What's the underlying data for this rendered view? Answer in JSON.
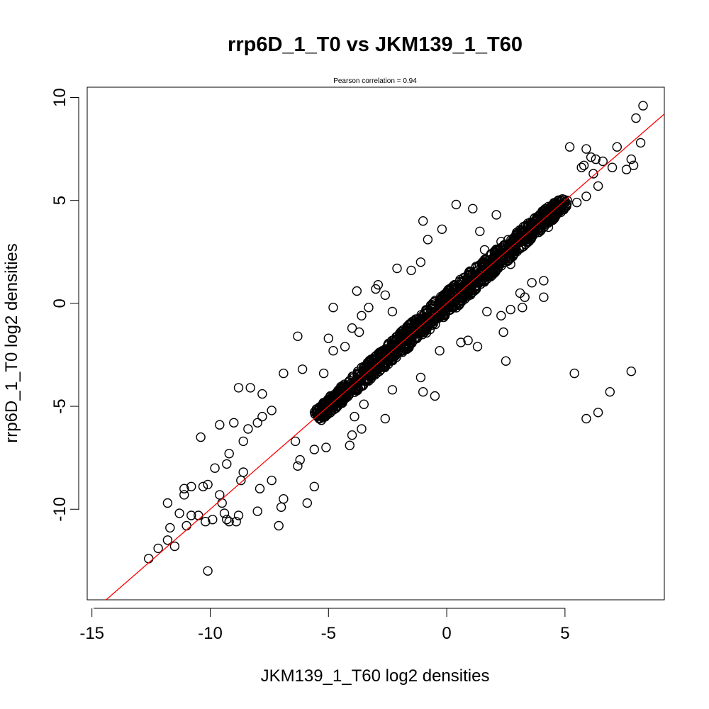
{
  "chart_data": {
    "type": "scatter",
    "title": "rrp6D_1_T0 vs JKM139_1_T60",
    "subtitle": "Pearson correlation =  0.94",
    "xlabel": "JKM139_1_T60 log2 densities",
    "ylabel": "rrp6D_1_T0 log2 densities",
    "xlim": [
      -15.2,
      9.2
    ],
    "ylim": [
      -14.4,
      10.5
    ],
    "xticks": [
      -15,
      -10,
      -5,
      0,
      5
    ],
    "yticks": [
      -10,
      -5,
      0,
      5,
      10
    ],
    "xtick_labels": [
      "-15",
      "-10",
      "-5",
      "0",
      "5"
    ],
    "ytick_labels": [
      "-10",
      "-5",
      "0",
      "5",
      "10"
    ],
    "fit_line": {
      "slope": 1.0,
      "intercept": 0.0,
      "color": "#ff0000"
    },
    "point_color": "#000000",
    "points": [
      [
        8.3,
        9.6
      ],
      [
        8.0,
        9.0
      ],
      [
        8.2,
        7.8
      ],
      [
        7.8,
        7.0
      ],
      [
        7.9,
        6.7
      ],
      [
        7.6,
        6.5
      ],
      [
        7.2,
        7.6
      ],
      [
        7.0,
        6.6
      ],
      [
        6.3,
        7.0
      ],
      [
        6.1,
        7.1
      ],
      [
        5.9,
        7.5
      ],
      [
        5.2,
        7.6
      ],
      [
        6.6,
        6.9
      ],
      [
        5.8,
        6.7
      ],
      [
        5.7,
        6.6
      ],
      [
        6.2,
        6.3
      ],
      [
        6.4,
        5.7
      ],
      [
        5.9,
        5.2
      ],
      [
        5.5,
        4.9
      ],
      [
        5.1,
        5.0
      ],
      [
        4.8,
        4.7
      ],
      [
        4.3,
        3.7
      ],
      [
        4.1,
        1.1
      ],
      [
        4.1,
        0.3
      ],
      [
        3.2,
        -0.2
      ],
      [
        2.4,
        -1.4
      ],
      [
        2.5,
        -2.8
      ],
      [
        5.4,
        -3.4
      ],
      [
        7.8,
        -3.3
      ],
      [
        6.9,
        -4.3
      ],
      [
        6.4,
        -5.3
      ],
      [
        5.9,
        -5.6
      ],
      [
        0.4,
        4.8
      ],
      [
        -1.1,
        2.0
      ],
      [
        -1.5,
        1.6
      ],
      [
        -0.8,
        3.1
      ],
      [
        -2.6,
        0.4
      ],
      [
        -2.9,
        0.9
      ],
      [
        -3.3,
        -0.2
      ],
      [
        -3.8,
        0.6
      ],
      [
        -3.6,
        -0.6
      ],
      [
        -4.8,
        -0.2
      ],
      [
        -4.0,
        -1.2
      ],
      [
        -3.7,
        -1.4
      ],
      [
        -4.3,
        -2.1
      ],
      [
        -4.8,
        -2.3
      ],
      [
        -5.0,
        -1.7
      ],
      [
        -5.2,
        -3.4
      ],
      [
        -6.3,
        -1.6
      ],
      [
        -6.1,
        -3.2
      ],
      [
        -6.9,
        -3.4
      ],
      [
        -7.4,
        -5.2
      ],
      [
        -7.8,
        -4.4
      ],
      [
        -8.8,
        -4.1
      ],
      [
        -8.3,
        -4.1
      ],
      [
        -7.8,
        -5.5
      ],
      [
        -8.0,
        -5.8
      ],
      [
        -8.4,
        -6.1
      ],
      [
        -8.6,
        -6.7
      ],
      [
        -9.0,
        -5.8
      ],
      [
        -9.6,
        -5.9
      ],
      [
        -10.4,
        -6.5
      ],
      [
        -9.2,
        -7.3
      ],
      [
        -9.3,
        -7.8
      ],
      [
        -8.6,
        -8.2
      ],
      [
        -8.7,
        -8.6
      ],
      [
        -9.8,
        -8.0
      ],
      [
        -10.1,
        -8.8
      ],
      [
        -10.3,
        -8.9
      ],
      [
        -10.8,
        -8.9
      ],
      [
        -11.1,
        -9.0
      ],
      [
        -11.1,
        -9.3
      ],
      [
        -9.6,
        -9.3
      ],
      [
        -9.5,
        -9.7
      ],
      [
        -9.4,
        -10.2
      ],
      [
        -9.9,
        -10.5
      ],
      [
        -10.2,
        -10.6
      ],
      [
        -10.5,
        -10.3
      ],
      [
        -10.8,
        -10.3
      ],
      [
        -11.0,
        -10.8
      ],
      [
        -11.3,
        -10.2
      ],
      [
        -11.8,
        -9.7
      ],
      [
        -11.7,
        -10.9
      ],
      [
        -11.8,
        -11.5
      ],
      [
        -11.5,
        -11.8
      ],
      [
        -12.2,
        -11.9
      ],
      [
        -12.6,
        -12.4
      ],
      [
        -10.1,
        -13.0
      ],
      [
        -9.3,
        -10.5
      ],
      [
        -9.2,
        -10.6
      ],
      [
        -8.9,
        -10.6
      ],
      [
        -8.8,
        -10.3
      ],
      [
        -8.0,
        -10.1
      ],
      [
        -7.0,
        -9.9
      ],
      [
        -7.1,
        -10.8
      ],
      [
        -6.9,
        -9.5
      ],
      [
        -5.6,
        -8.9
      ],
      [
        -5.9,
        -9.7
      ],
      [
        -7.4,
        -8.6
      ],
      [
        -7.9,
        -9.0
      ],
      [
        -6.2,
        -7.6
      ],
      [
        -6.3,
        -7.9
      ],
      [
        -6.4,
        -6.7
      ],
      [
        -5.6,
        -7.1
      ],
      [
        -5.1,
        -7.0
      ],
      [
        -4.1,
        -6.9
      ],
      [
        -4.0,
        -6.4
      ],
      [
        -3.6,
        -6.1
      ],
      [
        -3.9,
        -5.5
      ],
      [
        -3.5,
        -4.9
      ],
      [
        -2.6,
        -5.6
      ],
      [
        -2.3,
        -4.2
      ],
      [
        -1.0,
        -4.3
      ],
      [
        -0.5,
        -4.5
      ],
      [
        -1.1,
        -3.6
      ],
      [
        -0.3,
        -2.3
      ],
      [
        0.6,
        -1.9
      ],
      [
        0.9,
        -1.8
      ],
      [
        1.3,
        -2.1
      ],
      [
        1.7,
        -0.4
      ],
      [
        2.3,
        -0.6
      ],
      [
        2.7,
        -0.3
      ],
      [
        3.1,
        0.5
      ],
      [
        3.3,
        0.3
      ],
      [
        3.6,
        1.0
      ],
      [
        2.7,
        1.9
      ],
      [
        2.3,
        3.0
      ],
      [
        3.0,
        3.4
      ],
      [
        3.6,
        3.6
      ],
      [
        2.1,
        4.3
      ],
      [
        1.4,
        3.5
      ],
      [
        1.1,
        4.6
      ],
      [
        1.6,
        2.6
      ],
      [
        -0.2,
        3.6
      ],
      [
        -1.0,
        4.0
      ],
      [
        -2.1,
        1.7
      ],
      [
        -2.3,
        -0.4
      ],
      [
        -3.0,
        0.7
      ]
    ]
  }
}
